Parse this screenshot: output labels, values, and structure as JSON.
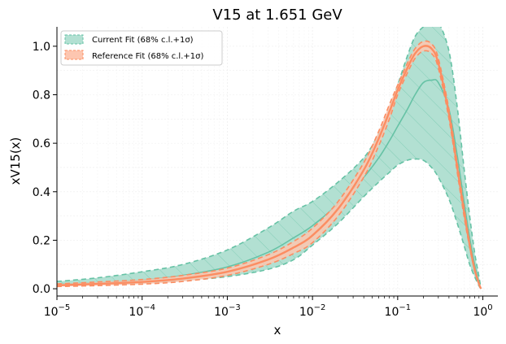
{
  "chart_data": {
    "type": "line",
    "title": "V15 at 1.651 GeV",
    "xlabel": "x",
    "ylabel": "xV15(x)",
    "xscale": "log",
    "xlim": [
      1e-05,
      1.5
    ],
    "ylim": [
      -0.03,
      1.08
    ],
    "xticks": [
      {
        "value": 1e-05,
        "base": "10",
        "exp": "−5"
      },
      {
        "value": 0.0001,
        "base": "10",
        "exp": "−4"
      },
      {
        "value": 0.001,
        "base": "10",
        "exp": "−3"
      },
      {
        "value": 0.01,
        "base": "10",
        "exp": "−2"
      },
      {
        "value": 0.1,
        "base": "10",
        "exp": "−1"
      },
      {
        "value": 1,
        "base": "10",
        "exp": "0"
      }
    ],
    "yticks": [
      {
        "value": 0.0,
        "label": "0.0"
      },
      {
        "value": 0.2,
        "label": "0.2"
      },
      {
        "value": 0.4,
        "label": "0.4"
      },
      {
        "value": 0.6,
        "label": "0.6"
      },
      {
        "value": 0.8,
        "label": "0.8"
      },
      {
        "value": 1.0,
        "label": "1.0"
      }
    ],
    "grid": true,
    "legend_position": "top-left",
    "colors": {
      "current": "#66c2a5",
      "current_fill": "#b2e0d2",
      "reference": "#fc8d62",
      "reference_fill": "#fdc6b0"
    },
    "x": [
      1e-05,
      3e-05,
      0.0001,
      0.0003,
      0.001,
      0.003,
      0.006,
      0.01,
      0.02,
      0.04,
      0.06,
      0.08,
      0.1,
      0.13,
      0.16,
      0.2,
      0.25,
      0.3,
      0.4,
      0.5,
      0.6,
      0.7,
      0.8,
      0.9,
      0.95
    ],
    "series": [
      {
        "name": "Current Fit (68% c.l.+1σ)",
        "central": [
          0.018,
          0.025,
          0.036,
          0.055,
          0.09,
          0.15,
          0.21,
          0.26,
          0.35,
          0.46,
          0.54,
          0.61,
          0.67,
          0.74,
          0.8,
          0.85,
          0.86,
          0.85,
          0.74,
          0.55,
          0.36,
          0.21,
          0.1,
          0.025,
          0.0
        ],
        "upper_1sigma": [
          0.03,
          0.045,
          0.07,
          0.1,
          0.16,
          0.25,
          0.32,
          0.36,
          0.44,
          0.54,
          0.64,
          0.74,
          0.84,
          0.96,
          1.04,
          1.08,
          1.1,
          1.1,
          0.98,
          0.75,
          0.5,
          0.3,
          0.15,
          0.05,
          0.0
        ],
        "lower_1sigma": [
          0.012,
          0.017,
          0.023,
          0.033,
          0.05,
          0.08,
          0.12,
          0.18,
          0.27,
          0.38,
          0.44,
          0.48,
          0.51,
          0.53,
          0.535,
          0.53,
          0.5,
          0.46,
          0.37,
          0.27,
          0.18,
          0.1,
          0.05,
          0.012,
          0.0
        ],
        "upper_68cl": [
          0.03,
          0.045,
          0.07,
          0.1,
          0.16,
          0.25,
          0.32,
          0.36,
          0.44,
          0.54,
          0.64,
          0.74,
          0.84,
          0.96,
          1.04,
          1.08,
          1.1,
          1.1,
          0.98,
          0.75,
          0.5,
          0.3,
          0.15,
          0.05,
          0.0
        ],
        "lower_68cl": [
          0.012,
          0.017,
          0.023,
          0.033,
          0.05,
          0.08,
          0.12,
          0.18,
          0.27,
          0.38,
          0.44,
          0.48,
          0.51,
          0.53,
          0.535,
          0.53,
          0.5,
          0.46,
          0.37,
          0.27,
          0.18,
          0.1,
          0.05,
          0.012,
          0.0
        ]
      },
      {
        "name": "Reference Fit (68% c.l.+1σ)",
        "central": [
          0.014,
          0.02,
          0.028,
          0.042,
          0.07,
          0.12,
          0.17,
          0.22,
          0.33,
          0.49,
          0.62,
          0.73,
          0.82,
          0.91,
          0.97,
          1.0,
          0.99,
          0.93,
          0.72,
          0.5,
          0.32,
          0.18,
          0.08,
          0.02,
          0.0
        ],
        "upper_1sigma": [
          0.02,
          0.028,
          0.038,
          0.055,
          0.085,
          0.14,
          0.195,
          0.25,
          0.36,
          0.52,
          0.65,
          0.76,
          0.84,
          0.93,
          0.99,
          1.02,
          1.01,
          0.95,
          0.74,
          0.52,
          0.34,
          0.19,
          0.085,
          0.022,
          0.0
        ],
        "lower_1sigma": [
          0.009,
          0.013,
          0.019,
          0.03,
          0.055,
          0.1,
          0.145,
          0.19,
          0.3,
          0.46,
          0.59,
          0.7,
          0.8,
          0.89,
          0.95,
          0.98,
          0.97,
          0.91,
          0.7,
          0.48,
          0.3,
          0.17,
          0.075,
          0.018,
          0.0
        ],
        "upper_68cl": [
          0.02,
          0.028,
          0.038,
          0.055,
          0.085,
          0.14,
          0.195,
          0.25,
          0.36,
          0.52,
          0.65,
          0.76,
          0.84,
          0.93,
          0.99,
          1.02,
          1.01,
          0.95,
          0.74,
          0.52,
          0.34,
          0.19,
          0.085,
          0.022,
          0.0
        ],
        "lower_68cl": [
          0.009,
          0.013,
          0.019,
          0.03,
          0.055,
          0.1,
          0.145,
          0.19,
          0.3,
          0.46,
          0.59,
          0.7,
          0.8,
          0.89,
          0.95,
          0.98,
          0.97,
          0.91,
          0.7,
          0.48,
          0.3,
          0.17,
          0.075,
          0.018,
          0.0
        ]
      }
    ]
  }
}
